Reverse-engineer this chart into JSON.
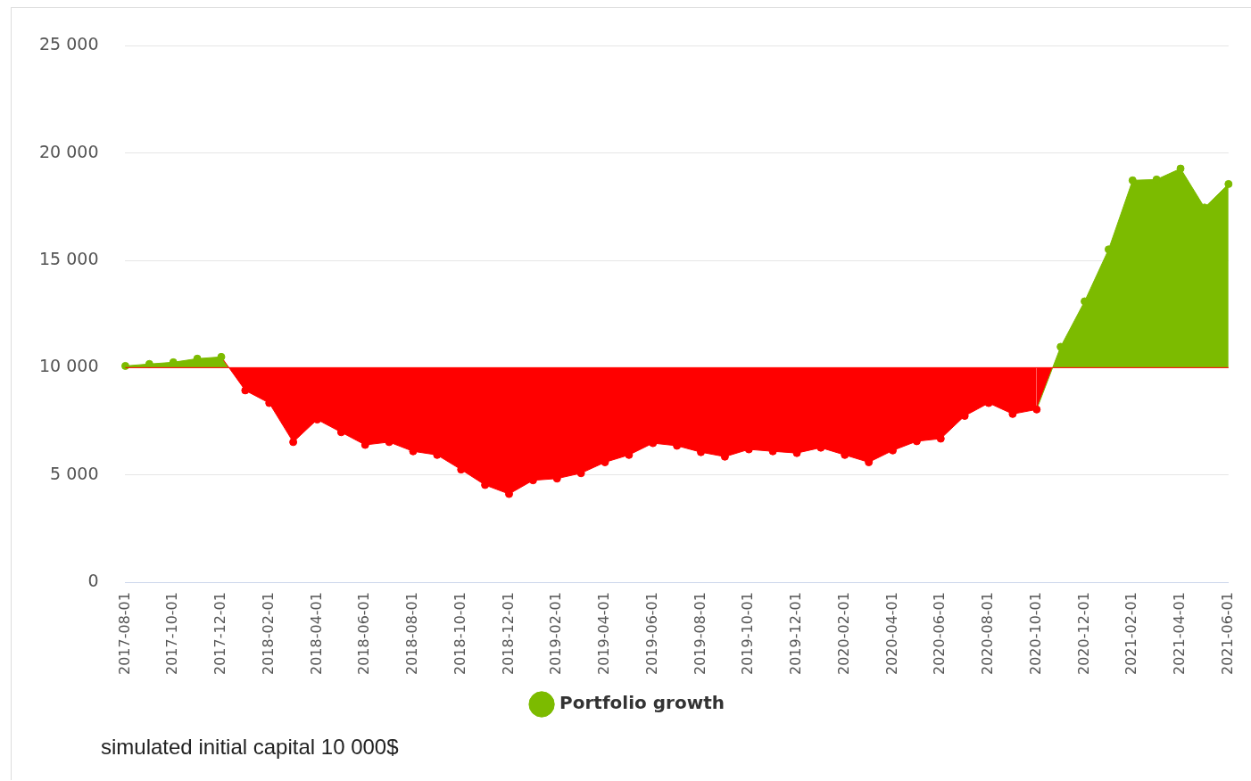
{
  "chart_data": {
    "type": "area",
    "categories": [
      "2017-08-01",
      null,
      "2017-10-01",
      null,
      "2017-12-01",
      null,
      "2018-02-01",
      null,
      "2018-04-01",
      null,
      "2018-06-01",
      null,
      "2018-08-01",
      null,
      "2018-10-01",
      null,
      "2018-12-01",
      null,
      "2019-02-01",
      null,
      "2019-04-01",
      null,
      "2019-06-01",
      null,
      "2019-08-01",
      null,
      "2019-10-01",
      null,
      "2019-12-01",
      null,
      "2020-02-01",
      null,
      "2020-04-01",
      null,
      "2020-06-01",
      null,
      "2020-08-01",
      null,
      "2020-10-01",
      null,
      "2020-12-01",
      null,
      "2021-02-01",
      null,
      "2021-04-01",
      null,
      "2021-06-01"
    ],
    "series": [
      {
        "name": "Portfolio growth",
        "color": "#7cbb00",
        "values": [
          10080,
          10170,
          10250,
          10420,
          10500,
          8940,
          8350,
          6530,
          7580,
          6990,
          6400,
          6530,
          6100,
          5930,
          5250,
          4530,
          4110,
          4750,
          4830,
          5080,
          5590,
          5930,
          6480,
          6360,
          6060,
          5850,
          6190,
          6100,
          6020,
          6270,
          5930,
          5590,
          6140,
          6570,
          6690,
          7750,
          8350,
          7840,
          8050,
          10970,
          13090,
          15510,
          18730,
          18770,
          19280,
          17460,
          18560
        ]
      }
    ],
    "ylim": [
      0,
      25000
    ],
    "yticks": [
      {
        "value": 0,
        "label": "0"
      },
      {
        "value": 5000,
        "label": "5 000"
      },
      {
        "value": 10000,
        "label": "10 000"
      },
      {
        "value": 15000,
        "label": "15 000"
      },
      {
        "value": 20000,
        "label": "20 000"
      },
      {
        "value": 25000,
        "label": "25 000"
      }
    ],
    "ref_lines": [
      {
        "axis": "y",
        "value": 10000,
        "color": "#ff0000"
      }
    ],
    "grid": "y",
    "legend": "bottom",
    "marker": "circle",
    "annotations": [
      "simulated initial capital 10 000$"
    ]
  }
}
